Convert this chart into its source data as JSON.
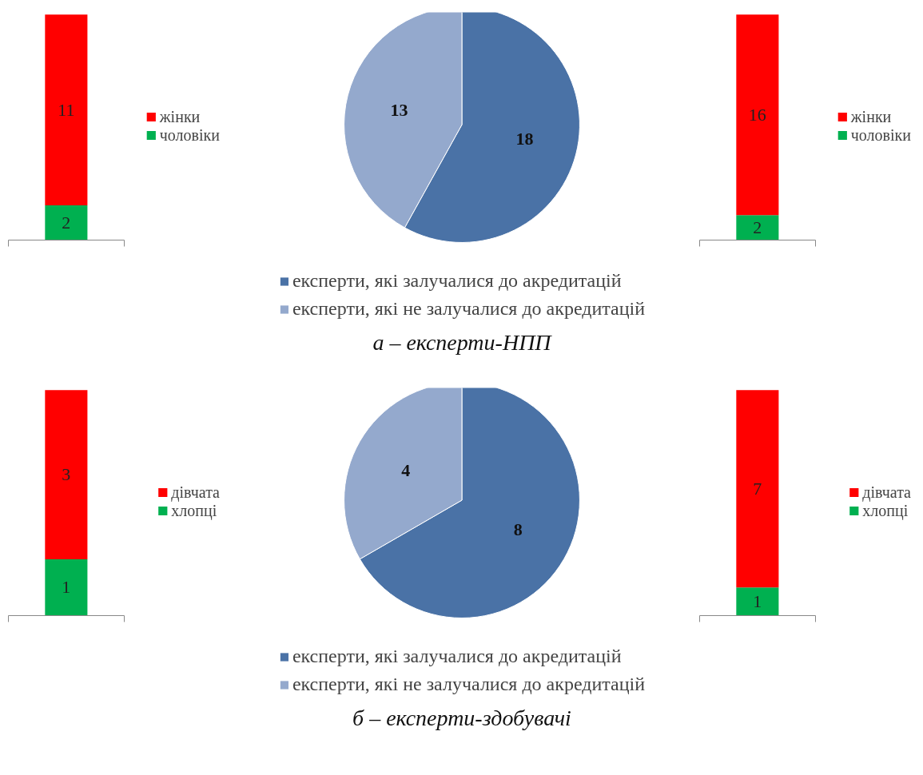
{
  "chart_data": [
    {
      "type": "bar",
      "categories": [
        null
      ],
      "stacked": true,
      "data_labels": true,
      "legend": "right",
      "series": [
        {
          "name": "чоловіки",
          "color": "#00b050",
          "values": [
            2
          ]
        },
        {
          "name": "жінки",
          "color": "#ff0000",
          "values": [
            11
          ]
        }
      ]
    },
    {
      "type": "pie",
      "categories": [
        "експерти, які залучалися до акредитацій",
        "експерти, які не залучалися до акредитацій"
      ],
      "values": [
        18,
        13
      ],
      "colors": [
        "#4a72a6",
        "#94a9cd"
      ],
      "data_labels": true,
      "legend": "bottom",
      "annotations": [
        "а – експерти-НПП"
      ]
    },
    {
      "type": "bar",
      "categories": [
        null
      ],
      "stacked": true,
      "data_labels": true,
      "legend": "right",
      "series": [
        {
          "name": "чоловіки",
          "color": "#00b050",
          "values": [
            2
          ]
        },
        {
          "name": "жінки",
          "color": "#ff0000",
          "values": [
            16
          ]
        }
      ]
    },
    {
      "type": "bar",
      "categories": [
        null
      ],
      "stacked": true,
      "data_labels": true,
      "legend": "right",
      "series": [
        {
          "name": "хлопці",
          "color": "#00b050",
          "values": [
            1
          ]
        },
        {
          "name": "дівчата",
          "color": "#ff0000",
          "values": [
            3
          ]
        }
      ]
    },
    {
      "type": "pie",
      "categories": [
        "експерти, які залучалися до акредитацій",
        "експерти, які не залучалися до акредитацій"
      ],
      "values": [
        8,
        4
      ],
      "colors": [
        "#4a72a6",
        "#94a9cd"
      ],
      "data_labels": true,
      "legend": "bottom",
      "annotations": [
        "б – експерти-здобувачі"
      ]
    },
    {
      "type": "bar",
      "categories": [
        null
      ],
      "stacked": true,
      "data_labels": true,
      "legend": "right",
      "series": [
        {
          "name": "хлопці",
          "color": "#00b050",
          "values": [
            1
          ]
        },
        {
          "name": "дівчата",
          "color": "#ff0000",
          "values": [
            7
          ]
        }
      ]
    }
  ]
}
